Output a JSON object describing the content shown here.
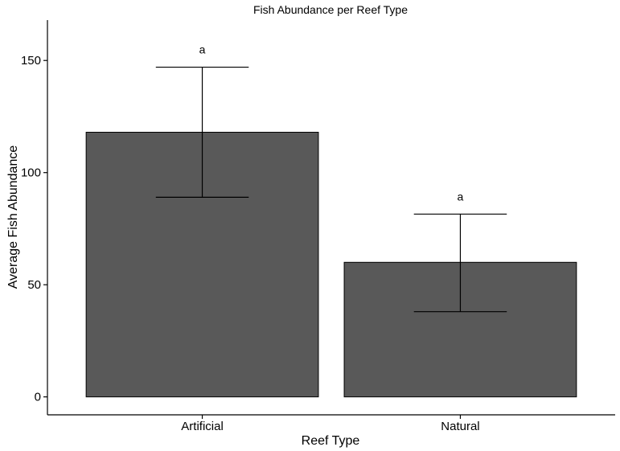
{
  "chart_data": {
    "type": "bar",
    "title": "Fish Abundance per Reef Type",
    "xlabel": "Reef Type",
    "ylabel": "Average Fish Abundance",
    "categories": [
      "Artificial",
      "Natural"
    ],
    "values": [
      118,
      60
    ],
    "error_low": [
      89,
      38
    ],
    "error_high": [
      147,
      81.5
    ],
    "annotations": [
      "a",
      "a"
    ],
    "yticks": [
      0,
      50,
      100,
      150
    ],
    "ylim": [
      -8,
      168
    ],
    "grid": false,
    "legend": "none",
    "colors": {
      "bar": "#595959",
      "bar_outline": "#000000",
      "axis": "#000000"
    }
  }
}
